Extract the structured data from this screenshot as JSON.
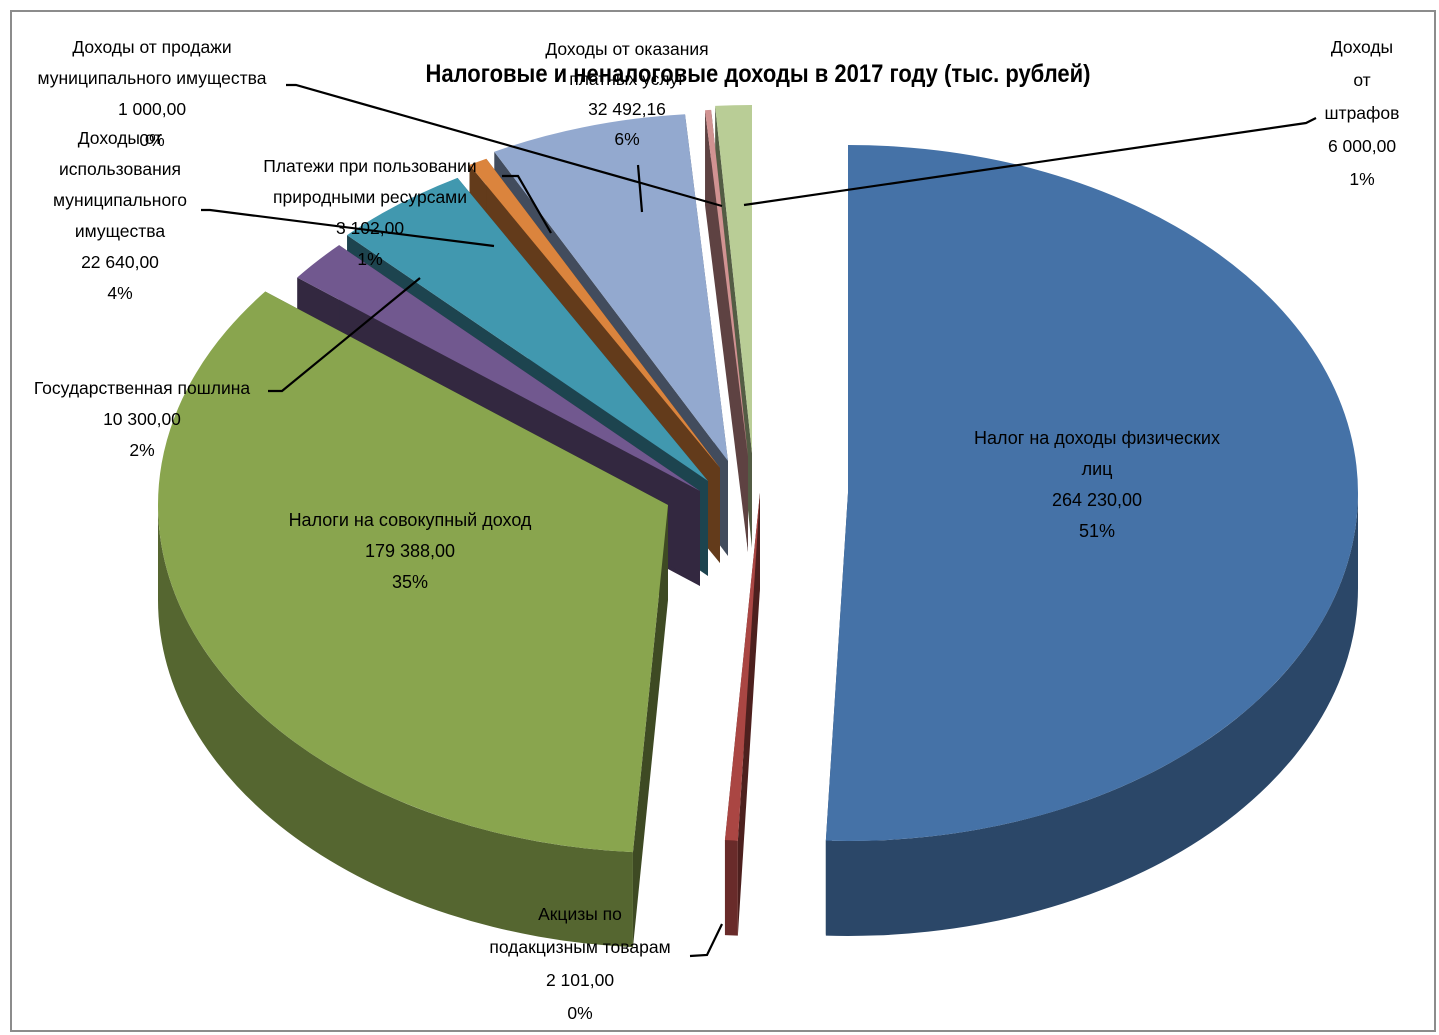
{
  "chart_data": {
    "type": "pie",
    "title": "Налоговые и неналоговые доходы в 2017 году (тыс. рублей)",
    "slices": [
      {
        "id": "ndfl",
        "lines": [
          "Налог на доходы физических",
          "лиц"
        ],
        "value": 264230.0,
        "value_label": "264 230,00",
        "percent_label": "51%",
        "color": "#4572a7"
      },
      {
        "id": "aktsizy",
        "lines": [
          "Акцизы по",
          "подакцизным товарам"
        ],
        "value": 2101.0,
        "value_label": "2 101,00",
        "percent_label": "0%",
        "color": "#aa4643"
      },
      {
        "id": "sovokupny",
        "lines": [
          "Налоги на совокупный доход"
        ],
        "value": 179388.0,
        "value_label": "179 388,00",
        "percent_label": "35%",
        "color": "#89a54e"
      },
      {
        "id": "gosposhlina",
        "lines": [
          "Государственная пошлина"
        ],
        "value": 10300.0,
        "value_label": "10 300,00",
        "percent_label": "2%",
        "color": "#71588f"
      },
      {
        "id": "ispolzovanie",
        "lines": [
          "Доходы от",
          "использования",
          "муниципального",
          "имущества"
        ],
        "value": 22640.0,
        "value_label": "22 640,00",
        "percent_label": "4%",
        "color": "#4198af"
      },
      {
        "id": "prirodnye",
        "lines": [
          "Платежи при пользовании",
          "природными ресурсами"
        ],
        "value": 3102.0,
        "value_label": "3 102,00",
        "percent_label": "1%",
        "color": "#db843d"
      },
      {
        "id": "platnye",
        "lines": [
          "Доходы от оказания",
          "платных услуг"
        ],
        "value": 32492.16,
        "value_label": "32 492,16",
        "percent_label": "6%",
        "color": "#93a9cf"
      },
      {
        "id": "prodazha",
        "lines": [
          "Доходы от продажи",
          "муниципального имущества"
        ],
        "value": 1000.0,
        "value_label": "1 000,00",
        "percent_label": "0%",
        "color": "#d19392"
      },
      {
        "id": "shtrafy",
        "lines": [
          "Доходы",
          "от",
          "штрафов"
        ],
        "value": 6000.0,
        "value_label": "6 000,00",
        "percent_label": "1%",
        "color": "#b9cd96"
      }
    ],
    "legend": "none",
    "style": "3d-exploded"
  }
}
